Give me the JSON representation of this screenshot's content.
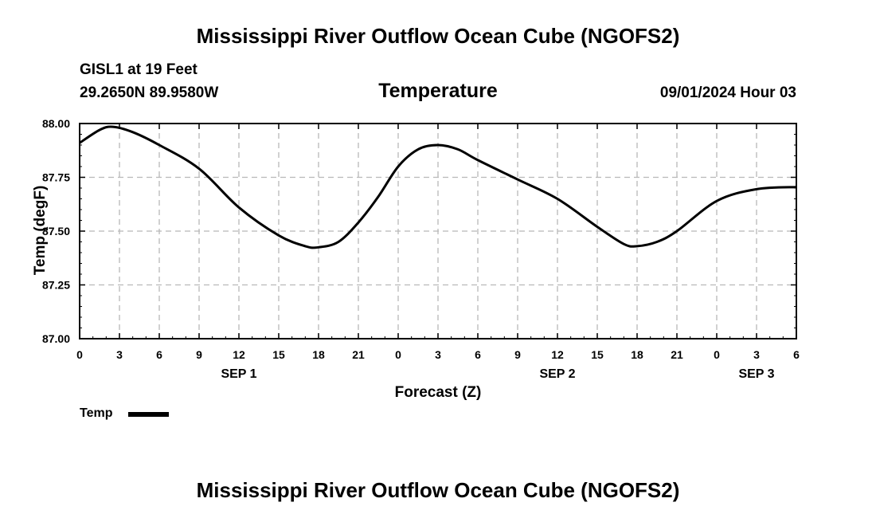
{
  "page": {
    "title_top": "Mississippi River Outflow Ocean Cube (NGOFS2)",
    "title_bottom": "Mississippi River Outflow Ocean Cube (NGOFS2)",
    "station": "GISL1 at 19 Feet",
    "coords": "29.2650N  89.9580W",
    "subtitle": "Temperature",
    "datetime": "09/01/2024 Hour 03",
    "legend_label": "Temp"
  },
  "chart_data": {
    "type": "line",
    "title": "Temperature",
    "xlabel": "Forecast (Z)",
    "ylabel": "Temp (degF)",
    "xlim": [
      0,
      54
    ],
    "ylim": [
      87.0,
      88.0
    ],
    "grid": true,
    "legend": "bottom-left",
    "x_ticks": [
      0,
      3,
      6,
      9,
      12,
      15,
      18,
      21,
      24,
      27,
      30,
      33,
      36,
      39,
      42,
      45,
      48,
      51,
      54
    ],
    "x_tick_labels": [
      "0",
      "3",
      "6",
      "9",
      "12",
      "15",
      "18",
      "21",
      "0",
      "3",
      "6",
      "9",
      "12",
      "15",
      "18",
      "21",
      "0",
      "3",
      "6"
    ],
    "y_ticks": [
      87.0,
      87.25,
      87.5,
      87.75,
      88.0
    ],
    "y_tick_labels": [
      "87.00",
      "87.25",
      "87.50",
      "87.75",
      "88.00"
    ],
    "date_labels": [
      {
        "x": 12,
        "label": "SEP 1"
      },
      {
        "x": 36,
        "label": "SEP 2"
      },
      {
        "x": 51,
        "label": "SEP 3"
      }
    ],
    "series": [
      {
        "name": "Temp",
        "color": "#000000",
        "x": [
          0,
          1.5,
          2.5,
          4,
          6,
          9,
          12,
          15,
          17,
          18,
          19.5,
          21,
          22.5,
          24,
          25.5,
          27,
          28.5,
          30,
          33,
          36,
          39,
          41,
          42,
          43.5,
          45,
          48,
          51,
          54
        ],
        "values": [
          87.91,
          87.97,
          87.985,
          87.96,
          87.9,
          87.79,
          87.61,
          87.48,
          87.43,
          87.425,
          87.45,
          87.54,
          87.66,
          87.8,
          87.88,
          87.9,
          87.88,
          87.83,
          87.74,
          87.65,
          87.52,
          87.44,
          87.43,
          87.45,
          87.5,
          87.64,
          87.695,
          87.705
        ]
      }
    ]
  }
}
